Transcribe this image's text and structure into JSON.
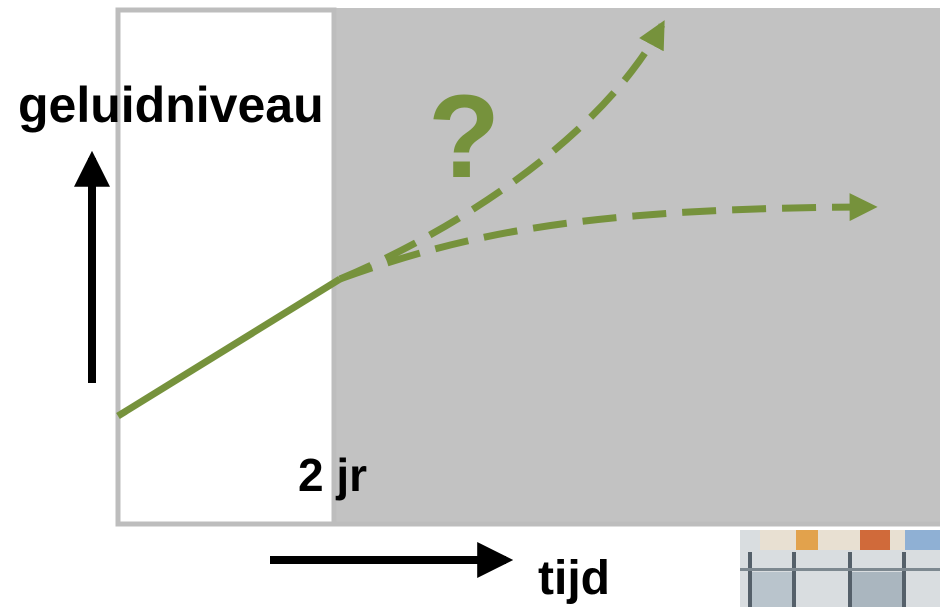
{
  "diagram": {
    "y_axis_label": "geluidniveau",
    "x_axis_label": "tijd",
    "time_marker": "2 jr",
    "uncertainty_mark": "?"
  },
  "colors": {
    "known_period_bg": "#ffffff",
    "future_period_bg": "#c2c2c2",
    "frame": "#bdbdbd",
    "trend_line": "#76923c",
    "axis_arrows": "#000000"
  },
  "decorations": {
    "photo_corner_icon": "building-photo-fragment"
  }
}
